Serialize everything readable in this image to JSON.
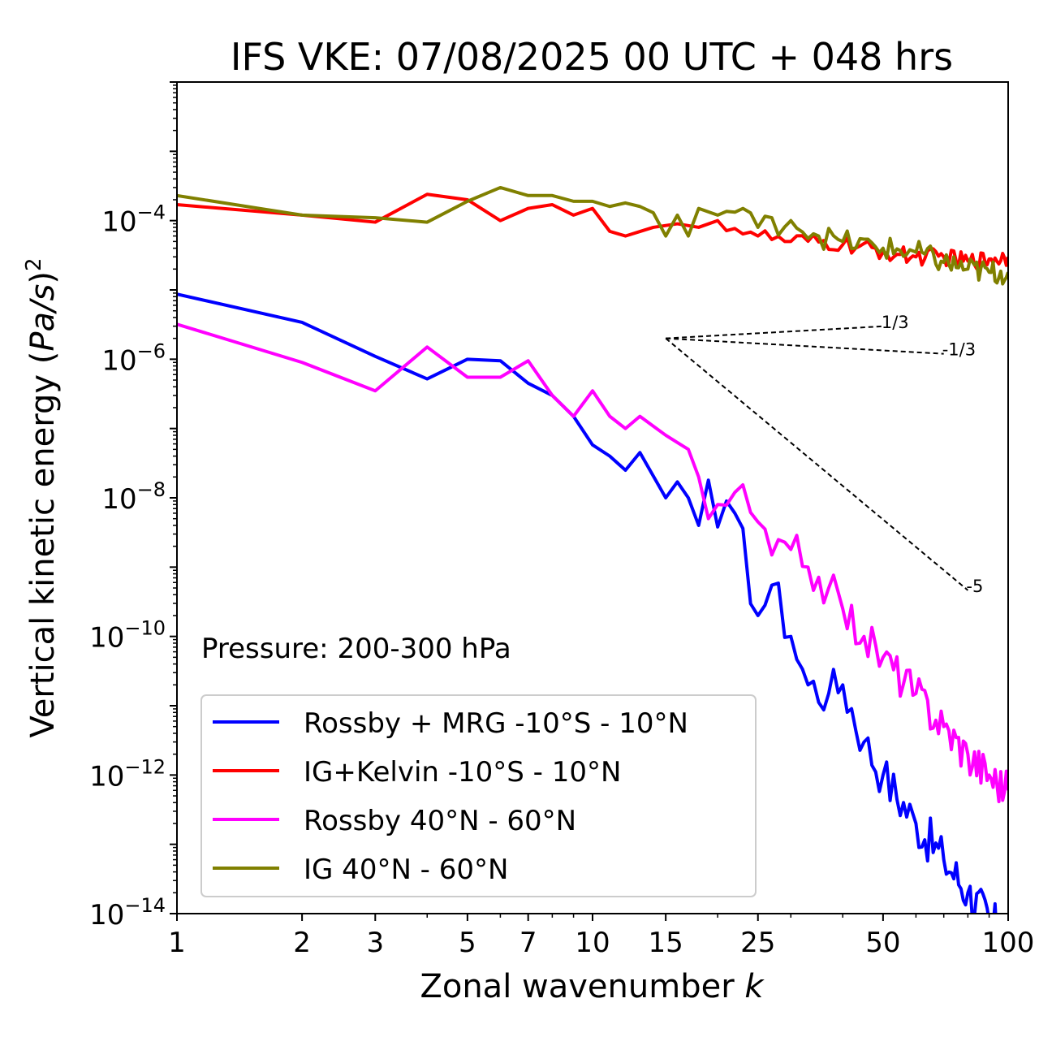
{
  "chart_data": {
    "type": "line",
    "title": "IFS VKE: 07/08/2025 00 UTC + 048 hrs",
    "xlabel": "Zonal wavenumber k",
    "xlabel_text": "Zonal wavenumber ",
    "xlabel_var": "k",
    "ylabel": "Vertical kinetic energy (Pa/s)^2",
    "ylabel_text": "Vertical kinetic energy (",
    "ylabel_unit": "Pa/s",
    "ylabel_close": ")",
    "ylabel_exp": "2",
    "xscale": "log",
    "yscale": "log",
    "xlim": [
      1,
      100
    ],
    "ylim": [
      1e-14,
      0.01
    ],
    "x_ticks": [
      1,
      2,
      3,
      5,
      7,
      10,
      15,
      25,
      50,
      100
    ],
    "y_ticks": [
      {
        "value": 0.0001,
        "base": "10",
        "exp": "−4"
      },
      {
        "value": 1e-06,
        "base": "10",
        "exp": "−6"
      },
      {
        "value": 1e-08,
        "base": "10",
        "exp": "−8"
      },
      {
        "value": 1e-10,
        "base": "10",
        "exp": "−10"
      },
      {
        "value": 1e-12,
        "base": "10",
        "exp": "−12"
      },
      {
        "value": 1e-14,
        "base": "10",
        "exp": "−14"
      }
    ],
    "annotation": "Pressure: 200-300 hPa",
    "legend_position": "lower-left",
    "reference_slopes": {
      "origin": [
        15,
        2e-06
      ],
      "lines": [
        {
          "label": "1/3",
          "slope": 0.333,
          "x_end": 50
        },
        {
          "label": "-1/3",
          "slope": -0.333,
          "x_end": 70
        },
        {
          "label": "-5",
          "slope": -5,
          "x_end": 80
        }
      ]
    },
    "series": [
      {
        "name": "Rossby + MRG -10°S - 10°N",
        "color": "#0000ff",
        "anchors": [
          [
            1,
            8.7e-06
          ],
          [
            2,
            3.4e-06
          ],
          [
            3,
            1.1e-06
          ],
          [
            4,
            5.2e-07
          ],
          [
            5,
            1e-06
          ],
          [
            6,
            9.5e-07
          ],
          [
            7,
            4.5e-07
          ],
          [
            8,
            3e-07
          ],
          [
            9,
            1.5e-07
          ],
          [
            10,
            5.8e-08
          ],
          [
            11,
            4e-08
          ],
          [
            12,
            2.5e-08
          ],
          [
            13,
            4.5e-08
          ],
          [
            15,
            1e-08
          ],
          [
            16,
            1.7e-08
          ],
          [
            17,
            1e-08
          ],
          [
            18,
            4e-09
          ],
          [
            19,
            1.8e-08
          ],
          [
            20,
            3.8e-09
          ],
          [
            22,
            6e-09
          ],
          [
            25,
            2e-10
          ],
          [
            27,
            5.5e-10
          ],
          [
            30,
            1e-10
          ],
          [
            33,
            2e-11
          ],
          [
            37,
            1.5e-11
          ],
          [
            40,
            2e-11
          ],
          [
            45,
            3e-12
          ],
          [
            50,
            1e-12
          ],
          [
            60,
            2e-13
          ],
          [
            70,
            6e-14
          ],
          [
            80,
            2e-14
          ],
          [
            90,
            8e-15
          ],
          [
            100,
            4e-15
          ]
        ],
        "noise": 0.7
      },
      {
        "name": "IG+Kelvin -10°S - 10°N",
        "color": "#ff0000",
        "anchors": [
          [
            1,
            0.00017
          ],
          [
            2,
            0.00012
          ],
          [
            3,
            9.5e-05
          ],
          [
            4,
            0.00024
          ],
          [
            5,
            0.0002
          ],
          [
            6,
            0.0001
          ],
          [
            7,
            0.00015
          ],
          [
            8,
            0.00017
          ],
          [
            9,
            0.00012
          ],
          [
            10,
            0.00015
          ],
          [
            11,
            7e-05
          ],
          [
            12,
            6e-05
          ],
          [
            14,
            8e-05
          ],
          [
            16,
            9e-05
          ],
          [
            18,
            8e-05
          ],
          [
            20,
            0.0001
          ],
          [
            25,
            6e-05
          ],
          [
            30,
            5e-05
          ],
          [
            40,
            4.5e-05
          ],
          [
            50,
            3.5e-05
          ],
          [
            60,
            3e-05
          ],
          [
            70,
            3e-05
          ],
          [
            80,
            2.6e-05
          ],
          [
            90,
            2.8e-05
          ],
          [
            100,
            3e-05
          ]
        ],
        "noise": 0.25
      },
      {
        "name": "Rossby 40°N - 60°N",
        "color": "#ff00ff",
        "anchors": [
          [
            1,
            3.2e-06
          ],
          [
            2,
            9e-07
          ],
          [
            3,
            3.5e-07
          ],
          [
            4,
            1.5e-06
          ],
          [
            5,
            5.5e-07
          ],
          [
            6,
            5.5e-07
          ],
          [
            7,
            9.5e-07
          ],
          [
            8,
            3e-07
          ],
          [
            9,
            1.5e-07
          ],
          [
            10,
            3.5e-07
          ],
          [
            11,
            1.5e-07
          ],
          [
            12,
            1e-07
          ],
          [
            13,
            1.5e-07
          ],
          [
            15,
            8e-08
          ],
          [
            17,
            5e-08
          ],
          [
            18,
            2e-08
          ],
          [
            19,
            5e-09
          ],
          [
            20,
            8e-09
          ],
          [
            22,
            1.2e-08
          ],
          [
            25,
            4.5e-09
          ],
          [
            27,
            1.5e-09
          ],
          [
            30,
            1.8e-09
          ],
          [
            33,
            1e-09
          ],
          [
            37,
            5e-10
          ],
          [
            40,
            2.5e-10
          ],
          [
            45,
            1e-10
          ],
          [
            50,
            5e-11
          ],
          [
            60,
            1.5e-11
          ],
          [
            70,
            5e-12
          ],
          [
            80,
            2e-12
          ],
          [
            90,
            1e-12
          ],
          [
            100,
            6e-13
          ]
        ],
        "noise": 0.6
      },
      {
        "name": "IG 40°N - 60°N",
        "color": "#808000",
        "anchors": [
          [
            1,
            0.00023
          ],
          [
            2,
            0.00012
          ],
          [
            3,
            0.00011
          ],
          [
            4,
            9.5e-05
          ],
          [
            5,
            0.00019
          ],
          [
            6,
            0.0003
          ],
          [
            7,
            0.00023
          ],
          [
            8,
            0.00023
          ],
          [
            9,
            0.00019
          ],
          [
            10,
            0.00019
          ],
          [
            11,
            0.00016
          ],
          [
            12,
            0.00018
          ],
          [
            13,
            0.00016
          ],
          [
            14,
            0.00013
          ],
          [
            15,
            6e-05
          ],
          [
            16,
            0.00012
          ],
          [
            17,
            6e-05
          ],
          [
            18,
            0.00015
          ],
          [
            20,
            0.00012
          ],
          [
            23,
            0.00015
          ],
          [
            25,
            8e-05
          ],
          [
            30,
            0.0001
          ],
          [
            35,
            6e-05
          ],
          [
            40,
            5e-05
          ],
          [
            50,
            4e-05
          ],
          [
            60,
            3.5e-05
          ],
          [
            70,
            2.5e-05
          ],
          [
            80,
            2e-05
          ],
          [
            90,
            1.8e-05
          ],
          [
            100,
            1.8e-05
          ]
        ],
        "noise": 0.35
      }
    ]
  }
}
